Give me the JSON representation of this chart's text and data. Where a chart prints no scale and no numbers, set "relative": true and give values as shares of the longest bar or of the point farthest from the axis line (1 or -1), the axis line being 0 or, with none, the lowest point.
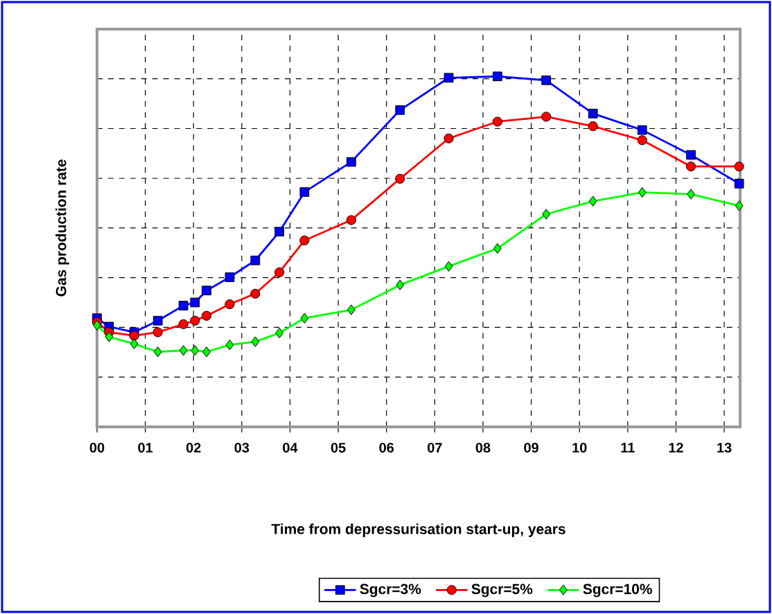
{
  "chart_data": {
    "type": "line",
    "xlabel": "Time from depressurisation start-up, years",
    "ylabel": "Gas production rate",
    "relative": true,
    "x": [
      0,
      0.25,
      0.77,
      1.26,
      1.79,
      2.03,
      2.27,
      2.75,
      3.28,
      3.78,
      4.3,
      5.27,
      6.28,
      7.29,
      8.3,
      9.31,
      10.28,
      11.3,
      12.31,
      13.31
    ],
    "xlim": [
      0,
      13.33
    ],
    "xticks": [
      {
        "value": 0,
        "label": "00"
      },
      {
        "value": 1,
        "label": "01"
      },
      {
        "value": 2,
        "label": "02"
      },
      {
        "value": 3,
        "label": "03"
      },
      {
        "value": 4,
        "label": "04"
      },
      {
        "value": 5,
        "label": "05"
      },
      {
        "value": 6,
        "label": "06"
      },
      {
        "value": 7,
        "label": "07"
      },
      {
        "value": 8,
        "label": "08"
      },
      {
        "value": 9,
        "label": "09"
      },
      {
        "value": 10,
        "label": "10"
      },
      {
        "value": 11,
        "label": "11"
      },
      {
        "value": 12,
        "label": "12"
      },
      {
        "value": 13,
        "label": "13"
      }
    ],
    "grid": true,
    "legend": "bottom",
    "tick_labels": "x",
    "line_style": "solid",
    "series": [
      {
        "name": "Sgcr=3%",
        "color": "#0000ff",
        "marker": "square",
        "values": [
          0.31,
          0.286,
          0.27,
          0.303,
          0.346,
          0.355,
          0.389,
          0.427,
          0.475,
          0.557,
          0.67,
          0.756,
          0.904,
          0.996,
          1,
          0.989,
          0.894,
          0.847,
          0.776,
          0.694
        ]
      },
      {
        "name": "Sgcr=5%",
        "color": "#ff0000",
        "marker": "circle",
        "values": [
          0.299,
          0.27,
          0.26,
          0.27,
          0.293,
          0.303,
          0.317,
          0.35,
          0.38,
          0.441,
          0.532,
          0.59,
          0.708,
          0.823,
          0.871,
          0.885,
          0.858,
          0.818,
          0.743,
          0.743
        ]
      },
      {
        "name": "Sgcr=10%",
        "color": "#00ff00",
        "marker": "diamond",
        "values": [
          0.29,
          0.257,
          0.237,
          0.214,
          0.218,
          0.218,
          0.214,
          0.234,
          0.243,
          0.268,
          0.31,
          0.334,
          0.405,
          0.458,
          0.509,
          0.607,
          0.644,
          0.669,
          0.664,
          0.631
        ]
      }
    ]
  }
}
